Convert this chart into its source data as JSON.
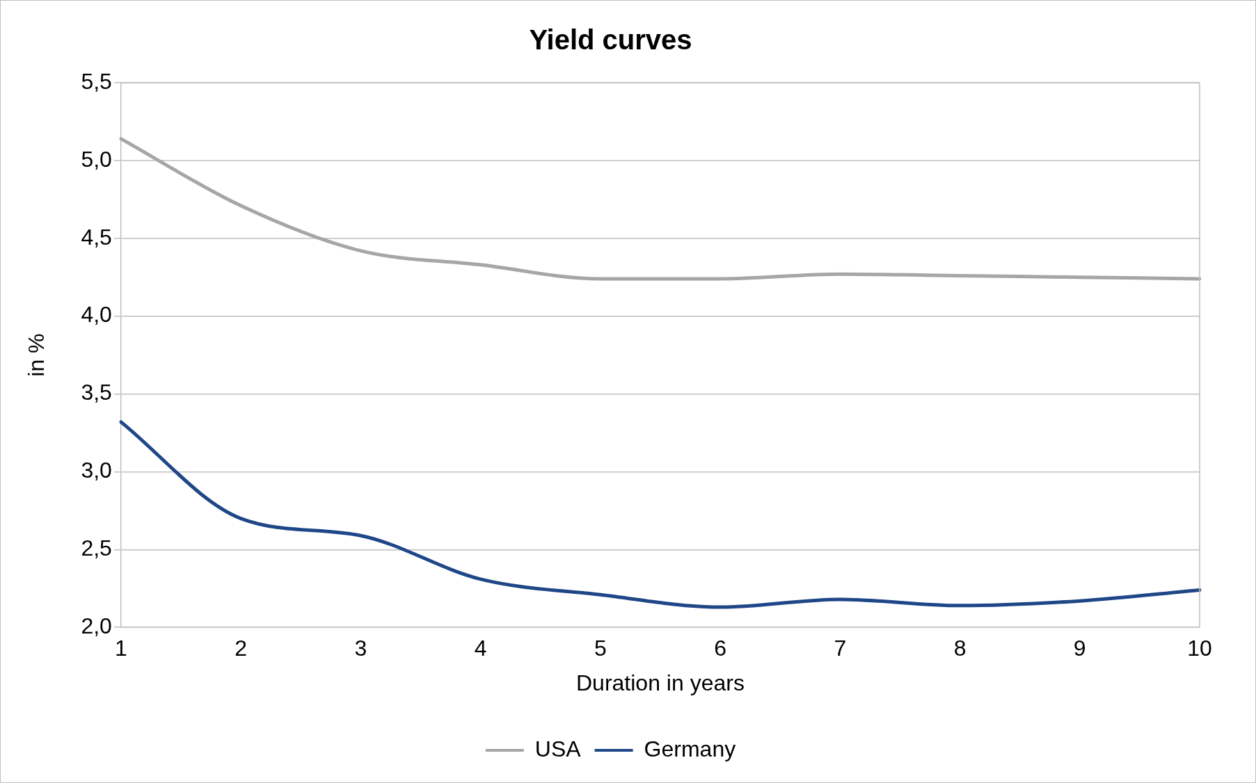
{
  "chart_data": {
    "type": "line",
    "title": "Yield curves",
    "xlabel": "Duration in years",
    "ylabel": "in %",
    "categories": [
      "1",
      "2",
      "3",
      "4",
      "5",
      "6",
      "7",
      "8",
      "9",
      "10"
    ],
    "series": [
      {
        "name": "USA",
        "color": "#a6a6a6",
        "values": [
          5.14,
          4.71,
          4.42,
          4.33,
          4.24,
          4.24,
          4.27,
          4.26,
          4.25,
          4.24
        ]
      },
      {
        "name": "Germany",
        "color": "#1f4788",
        "values": [
          3.32,
          2.7,
          2.59,
          2.31,
          2.21,
          2.13,
          2.18,
          2.14,
          2.17,
          2.24
        ]
      }
    ],
    "ylim": [
      2,
      5.5
    ],
    "yticks": [
      {
        "value": 2,
        "label": "2,0"
      },
      {
        "value": 2.5,
        "label": "2,5"
      },
      {
        "value": 3,
        "label": "3,0"
      },
      {
        "value": 3.5,
        "label": "3,5"
      },
      {
        "value": 4,
        "label": "4,0"
      },
      {
        "value": 4.5,
        "label": "4,5"
      },
      {
        "value": 5,
        "label": "5,0"
      },
      {
        "value": 5.5,
        "label": "5,5"
      }
    ],
    "grid": "y",
    "legend": "bottom",
    "marker": "none",
    "line_style": "solid"
  }
}
